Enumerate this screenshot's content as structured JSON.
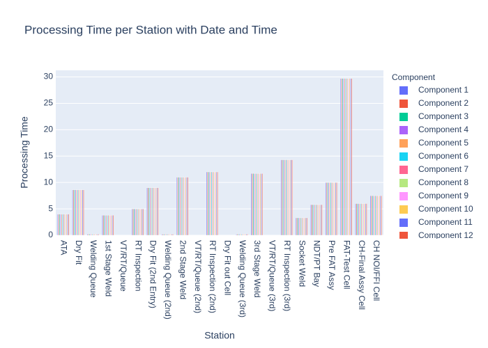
{
  "chart_data": {
    "type": "bar",
    "title": "Processing Time per Station with Date and Time",
    "x_label": "Station",
    "y_label": "Processing Time",
    "legend_title": "Component",
    "categories": [
      "ATA",
      "Dry Fit",
      "Welding Queue",
      "1st Stage Weld",
      "VT/RT/Queue",
      "RT Inspection",
      "Dry Fit (2nd Entry)",
      "Welding Queue (2nd)",
      "2nd Stage Weld",
      "VT/RT/Queue (2nd)",
      "RT Inspection (2nd)",
      "Dry Fit out Cell",
      "Welding Queue (3rd)",
      "3rd Stage Weld",
      "VT/RT/Queue (3rd)",
      "RT Inspection (3rd)",
      "Socket Weld",
      "NDT/PT Bay",
      "Pre FAT Assy",
      "FAT-Test Cell",
      "CH-Final Assy Cell",
      "CH NOI/FFI Cell"
    ],
    "series": [
      {
        "name": "Component 1",
        "color": "#636efa",
        "values": [
          4,
          8.6,
          0.2,
          3.8,
          0,
          5,
          9,
          0.2,
          11,
          0,
          12,
          0,
          0.2,
          11.7,
          0,
          14.3,
          3.3,
          5.8,
          10,
          29.7,
          6,
          7.5
        ]
      },
      {
        "name": "Component 2",
        "color": "#EF553B",
        "values": [
          4,
          8.6,
          0.2,
          3.8,
          0,
          5,
          9,
          0.2,
          11,
          0,
          12,
          0,
          0.2,
          11.7,
          0,
          14.3,
          3.3,
          5.8,
          10,
          29.7,
          6,
          7.5
        ]
      },
      {
        "name": "Component 3",
        "color": "#00cc96",
        "values": [
          4,
          8.6,
          0.2,
          3.8,
          0,
          5,
          9,
          0.2,
          11,
          0,
          12,
          0,
          0.2,
          11.7,
          0,
          14.3,
          3.3,
          5.8,
          10,
          29.7,
          6,
          7.5
        ]
      },
      {
        "name": "Component 4",
        "color": "#ab63fa",
        "values": [
          4,
          8.6,
          0.2,
          3.8,
          0,
          5,
          9,
          0.2,
          11,
          0,
          12,
          0,
          0.2,
          11.7,
          0,
          14.3,
          3.3,
          5.8,
          10,
          29.7,
          6,
          7.5
        ]
      },
      {
        "name": "Component 5",
        "color": "#FFA15A",
        "values": [
          4,
          8.6,
          0.2,
          3.8,
          0,
          5,
          9,
          0.2,
          11,
          0,
          12,
          0,
          0.2,
          11.7,
          0,
          14.3,
          3.3,
          5.8,
          10,
          29.7,
          6,
          7.5
        ]
      },
      {
        "name": "Component 6",
        "color": "#19d3f3",
        "values": [
          4,
          8.6,
          0.2,
          3.8,
          0,
          5,
          9,
          0.2,
          11,
          0,
          12,
          0,
          0.2,
          11.7,
          0,
          14.3,
          3.3,
          5.8,
          10,
          29.7,
          6,
          7.5
        ]
      },
      {
        "name": "Component 7",
        "color": "#FF6692",
        "values": [
          4,
          8.6,
          0.2,
          3.8,
          0,
          5,
          9,
          0.2,
          11,
          0,
          12,
          0,
          0.2,
          11.7,
          0,
          14.3,
          3.3,
          5.8,
          10,
          29.7,
          6,
          7.5
        ]
      },
      {
        "name": "Component 8",
        "color": "#B6E880",
        "values": [
          4,
          8.6,
          0.2,
          3.8,
          0,
          5,
          9,
          0.2,
          11,
          0,
          12,
          0,
          0.2,
          11.7,
          0,
          14.3,
          3.3,
          5.8,
          10,
          29.7,
          6,
          7.5
        ]
      },
      {
        "name": "Component 9",
        "color": "#FF97FF",
        "values": [
          4,
          8.6,
          0.2,
          3.8,
          0,
          5,
          9,
          0.2,
          11,
          0,
          12,
          0,
          0.2,
          11.7,
          0,
          14.3,
          3.3,
          5.8,
          10,
          29.7,
          6,
          7.5
        ]
      },
      {
        "name": "Component 10",
        "color": "#FECB52",
        "values": [
          4,
          8.6,
          0.2,
          3.8,
          0,
          5,
          9,
          0.2,
          11,
          0,
          12,
          0,
          0.2,
          11.7,
          0,
          14.3,
          3.3,
          5.8,
          10,
          29.7,
          6,
          7.5
        ]
      },
      {
        "name": "Component 11",
        "color": "#636efa",
        "values": [
          4,
          8.6,
          0.2,
          3.8,
          0,
          5,
          9,
          0.2,
          11,
          0,
          12,
          0,
          0.2,
          11.7,
          0,
          14.3,
          3.3,
          5.8,
          10,
          29.7,
          6,
          7.5
        ]
      },
      {
        "name": "Component 12",
        "color": "#EF553B",
        "values": [
          4,
          8.6,
          0.2,
          3.8,
          0,
          5,
          9,
          0.2,
          11,
          0,
          12,
          0,
          0.2,
          11.7,
          0,
          14.3,
          3.3,
          5.8,
          10,
          29.7,
          6,
          7.5
        ]
      }
    ],
    "ylim": [
      0,
      31.26
    ],
    "yticks": [
      0,
      5,
      10,
      15,
      20,
      25,
      30
    ],
    "grid": true,
    "legend": "right"
  }
}
